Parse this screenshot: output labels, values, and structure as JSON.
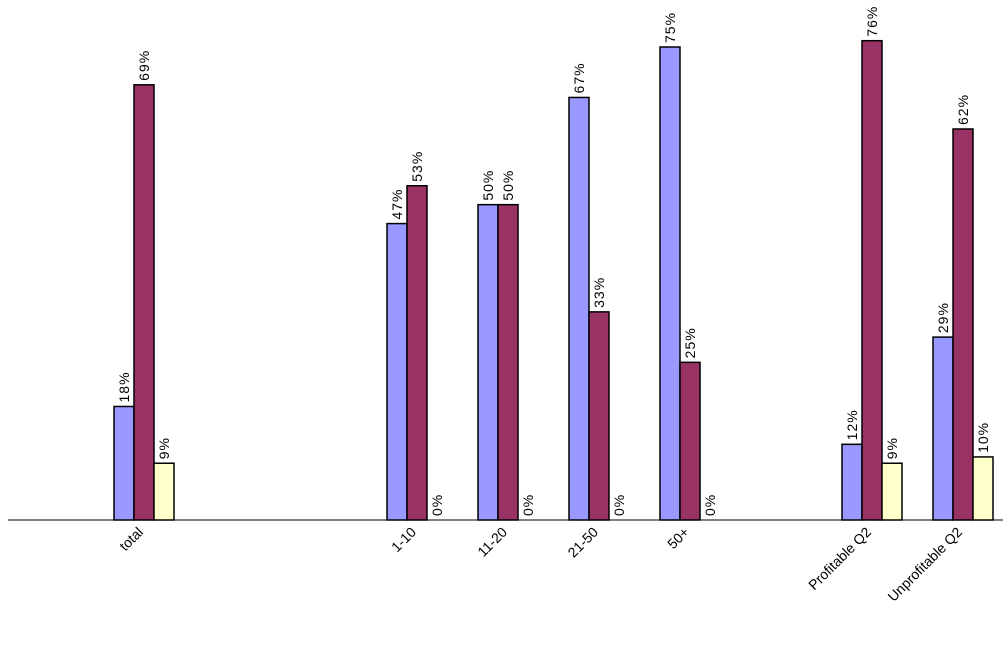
{
  "chart_data": {
    "type": "bar",
    "categories": [
      "total",
      "",
      "",
      "1-10",
      "11-20",
      "21-50",
      "50+",
      "",
      "Profitable Q2",
      "Unprofitable Q2"
    ],
    "series": [
      {
        "color": "#9999ff",
        "values": [
          18,
          null,
          null,
          47,
          50,
          67,
          75,
          null,
          12,
          29
        ],
        "labels": [
          "18%",
          null,
          null,
          "47%",
          "50%",
          "67%",
          "75%",
          null,
          "12%",
          "29%"
        ]
      },
      {
        "color": "#993366",
        "values": [
          69,
          null,
          null,
          53,
          50,
          33,
          25,
          null,
          76,
          62
        ],
        "labels": [
          "69%",
          null,
          null,
          "53%",
          "50%",
          "33%",
          "25%",
          null,
          "76%",
          "62%"
        ]
      },
      {
        "color": "#ffffcc",
        "values": [
          9,
          null,
          null,
          0,
          0,
          0,
          0,
          null,
          9,
          10
        ],
        "labels": [
          "9%",
          null,
          null,
          "0%",
          "0%",
          "0%",
          "0%",
          null,
          "9%",
          "10%"
        ]
      }
    ],
    "ylim": [
      0,
      80
    ],
    "grid": false,
    "legend": "none"
  }
}
